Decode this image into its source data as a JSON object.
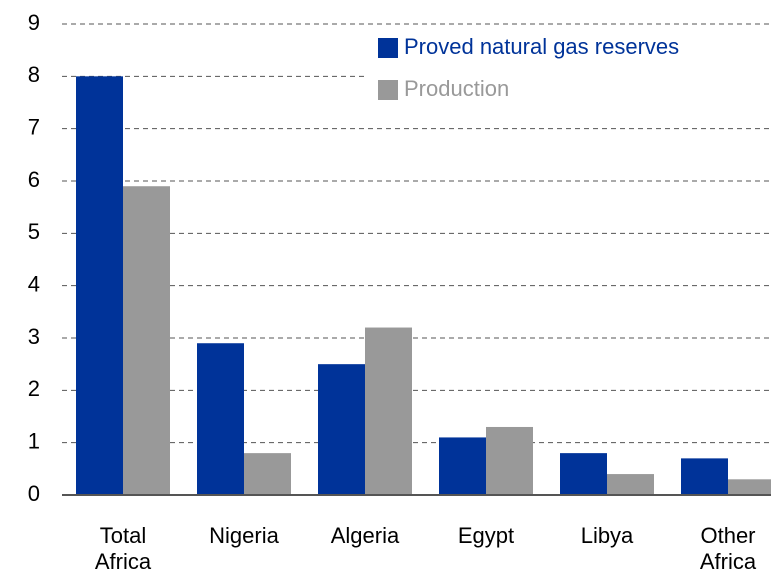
{
  "chart_data": {
    "type": "bar",
    "categories": [
      "Total Africa",
      "Nigeria",
      "Algeria",
      "Egypt",
      "Libya",
      "Other Africa"
    ],
    "series": [
      {
        "name": "Proved natural gas reserves",
        "color": "#003399",
        "values": [
          8.0,
          2.9,
          2.5,
          1.1,
          0.8,
          0.7
        ]
      },
      {
        "name": "Production",
        "color": "#999999",
        "values": [
          5.9,
          0.8,
          3.2,
          1.3,
          0.4,
          0.3
        ]
      }
    ],
    "ylim": [
      0,
      9
    ],
    "yticks": [
      0,
      1,
      2,
      3,
      4,
      5,
      6,
      7,
      8,
      9
    ],
    "grid": true,
    "legend": "top-right"
  }
}
